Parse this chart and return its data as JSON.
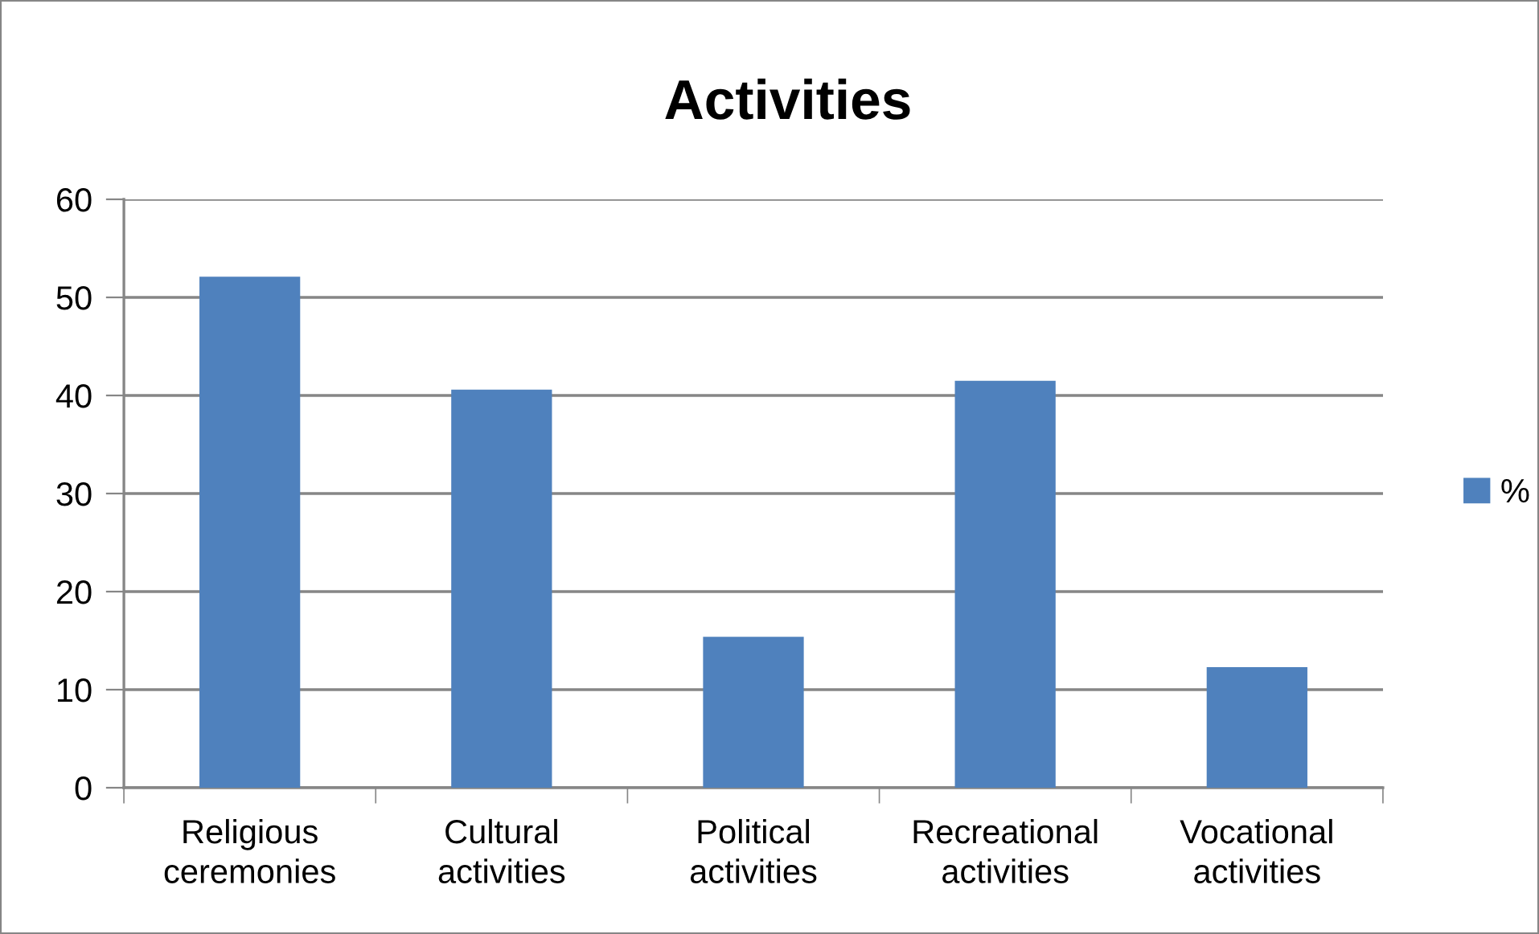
{
  "chart_data": {
    "type": "bar",
    "title": "Activities",
    "categories": [
      "Religious\nceremonies",
      "Cultural\nactivities",
      "Political\nactivities",
      "Recreational\nactivities",
      "Vocational\nactivities"
    ],
    "series": [
      {
        "name": "%",
        "color": "#4f81bd",
        "values": [
          52.1,
          40.6,
          15.4,
          41.5,
          12.3
        ]
      }
    ],
    "ylim": [
      0,
      60
    ],
    "yticks": [
      0,
      10,
      20,
      30,
      40,
      50,
      60
    ],
    "grid": "y",
    "legend": "right"
  }
}
